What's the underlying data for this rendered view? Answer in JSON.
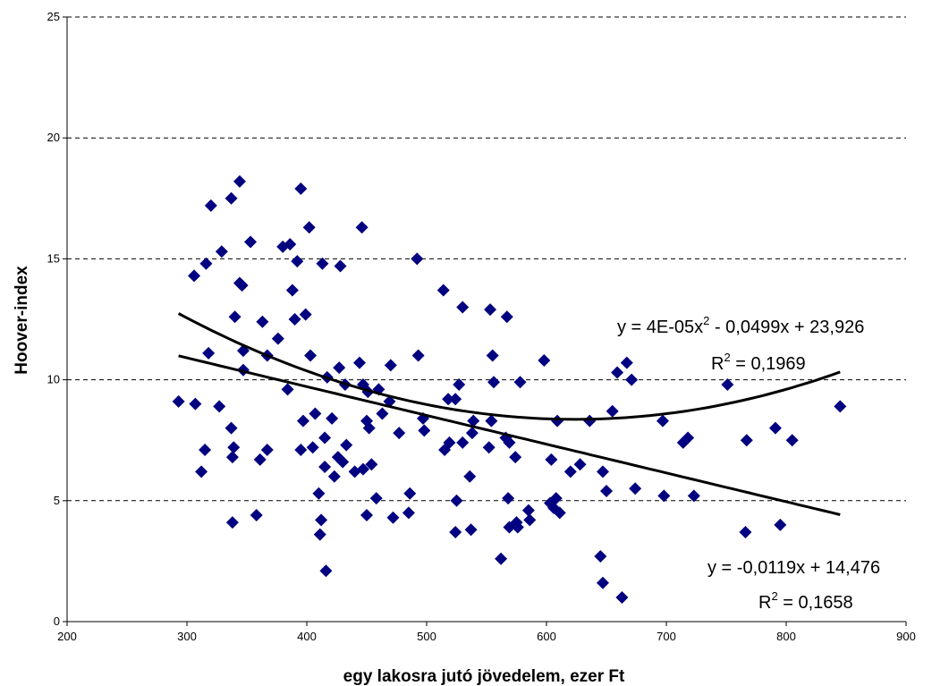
{
  "chart_data": {
    "type": "scatter",
    "xlabel": "egy lakosra jutó jövedelem, ezer Ft",
    "ylabel": "Hoover-index",
    "xlim": [
      200,
      900
    ],
    "ylim": [
      0,
      25
    ],
    "x_ticks": [
      "200",
      "300",
      "400",
      "500",
      "600",
      "700",
      "800",
      "900"
    ],
    "y_ticks": [
      "0",
      "5",
      "10",
      "15",
      "20",
      "25"
    ],
    "grid": "horizontal dashed",
    "marker_color": "#000080",
    "marker": "diamond",
    "series": [
      {
        "points": [
          [
            293,
            9.1
          ],
          [
            306,
            14.3
          ],
          [
            307,
            9.0
          ],
          [
            312,
            6.2
          ],
          [
            315,
            7.1
          ],
          [
            316,
            14.8
          ],
          [
            318,
            11.1
          ],
          [
            320,
            17.2
          ],
          [
            327,
            8.9
          ],
          [
            329,
            15.3
          ],
          [
            337,
            17.5
          ],
          [
            337,
            8.0
          ],
          [
            338,
            6.8
          ],
          [
            338,
            4.1
          ],
          [
            339,
            7.2
          ],
          [
            340,
            12.6
          ],
          [
            344,
            18.2
          ],
          [
            344,
            14.0
          ],
          [
            346,
            13.9
          ],
          [
            347,
            11.2
          ],
          [
            347,
            10.4
          ],
          [
            353,
            15.7
          ],
          [
            358,
            4.4
          ],
          [
            361,
            6.7
          ],
          [
            363,
            12.4
          ],
          [
            367,
            7.1
          ],
          [
            367,
            11.0
          ],
          [
            376,
            11.7
          ],
          [
            380,
            15.5
          ],
          [
            384,
            9.6
          ],
          [
            386,
            15.6
          ],
          [
            388,
            13.7
          ],
          [
            390,
            12.5
          ],
          [
            392,
            14.9
          ],
          [
            395,
            17.9
          ],
          [
            395,
            7.1
          ],
          [
            397,
            8.3
          ],
          [
            399,
            12.7
          ],
          [
            402,
            16.3
          ],
          [
            403,
            11.0
          ],
          [
            405,
            7.2
          ],
          [
            407,
            8.6
          ],
          [
            410,
            5.3
          ],
          [
            412,
            4.2
          ],
          [
            411,
            3.6
          ],
          [
            413,
            14.8
          ],
          [
            415,
            6.4
          ],
          [
            415,
            7.6
          ],
          [
            416,
            2.1
          ],
          [
            417,
            10.1
          ],
          [
            421,
            8.4
          ],
          [
            423,
            6.0
          ],
          [
            426,
            6.8
          ],
          [
            427,
            10.5
          ],
          [
            428,
            14.7
          ],
          [
            430,
            6.6
          ],
          [
            432,
            9.8
          ],
          [
            433,
            7.3
          ],
          [
            440,
            6.2
          ],
          [
            444,
            10.7
          ],
          [
            446,
            16.3
          ],
          [
            447,
            9.8
          ],
          [
            447,
            6.3
          ],
          [
            450,
            4.4
          ],
          [
            450,
            8.3
          ],
          [
            451,
            9.5
          ],
          [
            452,
            8.0
          ],
          [
            454,
            6.5
          ],
          [
            458,
            5.1
          ],
          [
            460,
            9.6
          ],
          [
            463,
            8.6
          ],
          [
            469,
            9.1
          ],
          [
            470,
            10.6
          ],
          [
            472,
            4.3
          ],
          [
            477,
            7.8
          ],
          [
            485,
            4.5
          ],
          [
            486,
            5.3
          ],
          [
            492,
            15.0
          ],
          [
            493,
            11.0
          ],
          [
            497,
            8.4
          ],
          [
            498,
            7.9
          ],
          [
            514,
            13.7
          ],
          [
            515,
            7.1
          ],
          [
            518,
            9.2
          ],
          [
            519,
            7.4
          ],
          [
            524,
            9.2
          ],
          [
            524,
            3.7
          ],
          [
            525,
            5.0
          ],
          [
            527,
            9.8
          ],
          [
            530,
            13.0
          ],
          [
            530,
            7.4
          ],
          [
            536,
            6.0
          ],
          [
            537,
            3.8
          ],
          [
            538,
            7.8
          ],
          [
            539,
            8.3
          ],
          [
            552,
            7.2
          ],
          [
            553,
            12.9
          ],
          [
            554,
            8.3
          ],
          [
            555,
            11.0
          ],
          [
            556,
            9.9
          ],
          [
            562,
            2.6
          ],
          [
            566,
            7.6
          ],
          [
            567,
            12.6
          ],
          [
            568,
            5.1
          ],
          [
            569,
            7.4
          ],
          [
            569,
            3.9
          ],
          [
            574,
            6.8
          ],
          [
            575,
            4.1
          ],
          [
            576,
            3.9
          ],
          [
            578,
            9.9
          ],
          [
            585,
            4.6
          ],
          [
            586,
            4.2
          ],
          [
            598,
            10.8
          ],
          [
            603,
            4.9
          ],
          [
            604,
            6.7
          ],
          [
            606,
            4.7
          ],
          [
            608,
            5.1
          ],
          [
            609,
            8.3
          ],
          [
            611,
            4.5
          ],
          [
            620,
            6.2
          ],
          [
            628,
            6.5
          ],
          [
            636,
            8.3
          ],
          [
            645,
            2.7
          ],
          [
            647,
            6.2
          ],
          [
            647,
            1.6
          ],
          [
            650,
            5.4
          ],
          [
            655,
            8.7
          ],
          [
            659,
            10.3
          ],
          [
            663,
            1.0
          ],
          [
            667,
            10.7
          ],
          [
            671,
            10.0
          ],
          [
            674,
            5.5
          ],
          [
            697,
            8.3
          ],
          [
            698,
            5.2
          ],
          [
            714,
            7.4
          ],
          [
            718,
            7.6
          ],
          [
            723,
            5.2
          ],
          [
            751,
            9.8
          ],
          [
            766,
            3.7
          ],
          [
            767,
            7.5
          ],
          [
            791,
            8.0
          ],
          [
            795,
            4.0
          ],
          [
            805,
            7.5
          ],
          [
            845,
            8.9
          ]
        ]
      }
    ],
    "trendlines": [
      {
        "type": "linear",
        "x_range": [
          293,
          845
        ],
        "equation": "y = -0,0119x + 14,476",
        "r_squared_prefix": "R",
        "r_squared_value": " = 0,1658",
        "coef": {
          "a": -0.0119,
          "b": 14.476
        }
      },
      {
        "type": "polynomial",
        "x_range": [
          293,
          845
        ],
        "equation_prefix": "y = 4E-05x",
        "equation_suffix": " - 0,0499x + 23,926",
        "r_squared_prefix": "R",
        "r_squared_value": " = 0,1969",
        "coef": {
          "a": 4e-05,
          "b": -0.0499,
          "c": 23.926
        }
      }
    ]
  }
}
